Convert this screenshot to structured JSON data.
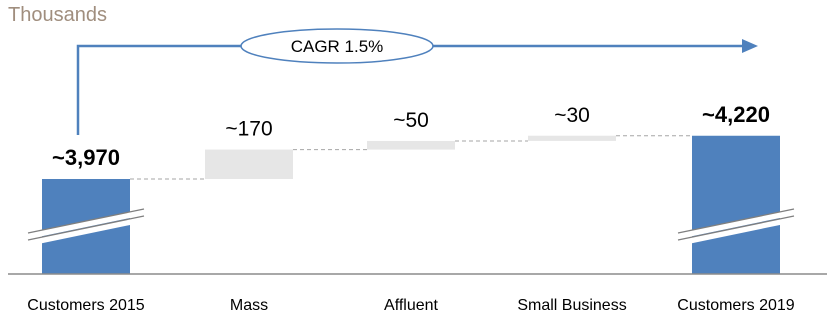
{
  "chart_data": {
    "type": "bar",
    "subtype": "waterfall",
    "unit_label": "Thousands",
    "categories": [
      "Customers 2015",
      "Mass",
      "Affluent",
      "Small Business",
      "Customers 2019"
    ],
    "values": [
      3970,
      170,
      50,
      30,
      4220
    ],
    "value_labels": [
      "~3,970",
      "~170",
      "~50",
      "~30",
      "~4,220"
    ],
    "bar_kinds": [
      "total",
      "increment",
      "increment",
      "increment",
      "total"
    ],
    "axis_break": true,
    "annotation": "CAGR 1.5%",
    "colors": {
      "total": "#4f81bd",
      "increment": "#e6e6e6",
      "connector": "#a6a6a6",
      "arrow": "#4f81bd"
    }
  }
}
